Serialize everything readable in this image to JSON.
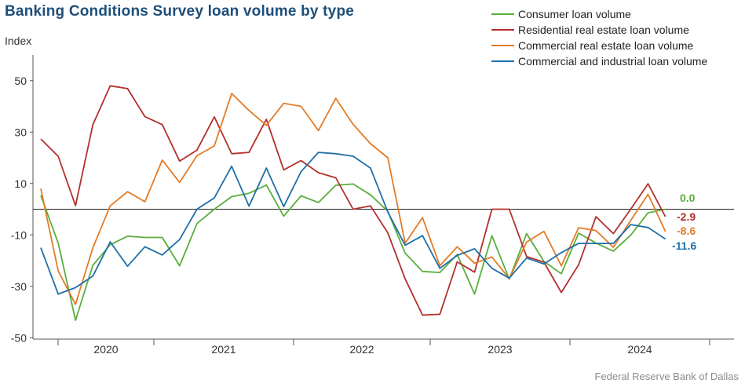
{
  "title": "Banking Conditions Survey loan volume by type",
  "ylabel": "Index",
  "source": "Federal Reserve Bank of Dallas",
  "chart_data": {
    "type": "line",
    "title": "Banking Conditions Survey loan volume by type",
    "ylabel": "Index",
    "xlabel": "",
    "ylim": [
      -50,
      60
    ],
    "yticks": [
      -50,
      -30,
      -10,
      10,
      30,
      50
    ],
    "xticks": [
      "2020",
      "2021",
      "2022",
      "2023",
      "2024"
    ],
    "legend_position": "top-right",
    "grid": false,
    "x_period": "monthly observations, mid-2019 through 2024",
    "series": [
      {
        "name": "Consumer loan volume",
        "color": "#5aae3c",
        "end_label": "0.0",
        "values": [
          5.3,
          -13.1,
          -43.2,
          -21.8,
          -13.8,
          -10.5,
          -11.0,
          -11.0,
          -22.0,
          -5.6,
          0.0,
          4.9,
          6.2,
          9.4,
          -2.7,
          5.2,
          2.6,
          9.3,
          9.8,
          5.6,
          -0.8,
          -17.1,
          -24.2,
          -24.6,
          -17.6,
          -33.0,
          -10.3,
          -27.2,
          -9.5,
          -20.3,
          -25.1,
          -9.3,
          -13.2,
          -16.3,
          -10.1,
          -1.4,
          0.0
        ]
      },
      {
        "name": "Residential real estate loan volume",
        "color": "#b2302b",
        "end_label": "-2.9",
        "values": [
          27.3,
          20.6,
          1.4,
          32.9,
          48.0,
          46.9,
          36.0,
          32.9,
          18.7,
          23.0,
          35.9,
          21.6,
          22.1,
          35.0,
          15.3,
          18.9,
          14.2,
          12.2,
          0.0,
          1.3,
          -9.2,
          -27.1,
          -41.2,
          -40.9,
          -20.5,
          -24.5,
          0.0,
          0.0,
          -18.4,
          -20.6,
          -32.4,
          -21.6,
          -2.9,
          -9.5,
          0.0,
          9.9,
          -2.9
        ]
      },
      {
        "name": "Commercial real estate loan volume",
        "color": "#e37b27",
        "end_label": "-8.6",
        "values": [
          8.0,
          -24.0,
          -37.0,
          -15.0,
          1.3,
          6.8,
          2.9,
          19.1,
          10.4,
          20.8,
          24.6,
          45.0,
          38.4,
          32.6,
          41.2,
          40.0,
          30.6,
          43.1,
          33.0,
          25.5,
          20.0,
          -13.2,
          -3.3,
          -22.0,
          -14.6,
          -21.0,
          -18.6,
          -27.0,
          -12.8,
          -8.6,
          -22.0,
          -7.2,
          -8.3,
          -14.8,
          -4.4,
          5.8,
          -8.6
        ]
      },
      {
        "name": "Commercial and industrial loan volume",
        "color": "#1f6fa8",
        "end_label": "-11.6",
        "values": [
          -15.0,
          -33.0,
          -30.5,
          -26.0,
          -12.7,
          -22.2,
          -14.6,
          -17.8,
          -11.8,
          0.0,
          4.4,
          16.7,
          1.2,
          16.0,
          1.0,
          14.6,
          22.1,
          21.6,
          20.6,
          16.0,
          -1.1,
          -14.0,
          -10.3,
          -23.0,
          -18.0,
          -15.4,
          -23.0,
          -26.8,
          -19.0,
          -21.3,
          -16.9,
          -13.3,
          -13.3,
          -13.3,
          -6.0,
          -7.1,
          -11.6
        ]
      }
    ]
  }
}
